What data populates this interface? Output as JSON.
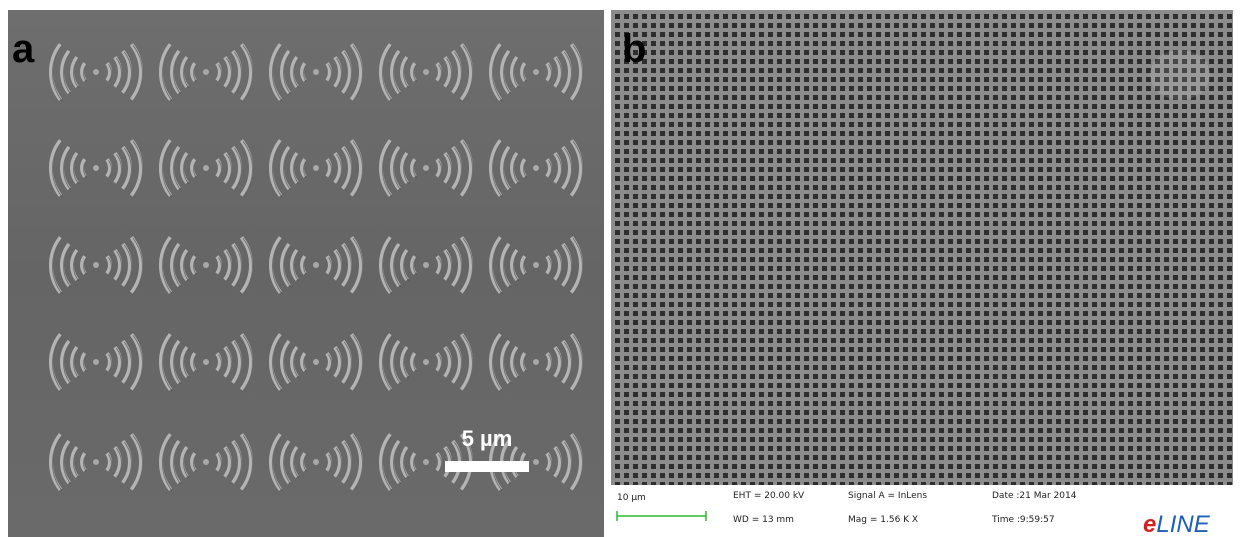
{
  "panels": [
    {
      "label": "a",
      "scale_bar": "5 µm"
    },
    {
      "label": "b"
    }
  ],
  "info_bar": {
    "scale": "10 µm",
    "eht": "EHT = 20.00 kV",
    "wd": "WD = 13 mm",
    "signal": "Signal A = InLens",
    "mag": "Mag = 1.56 K X",
    "date": "Date :21 Mar 2014",
    "time": "Time :9:59:57",
    "logo_e": "e",
    "logo_line": "LINE"
  }
}
